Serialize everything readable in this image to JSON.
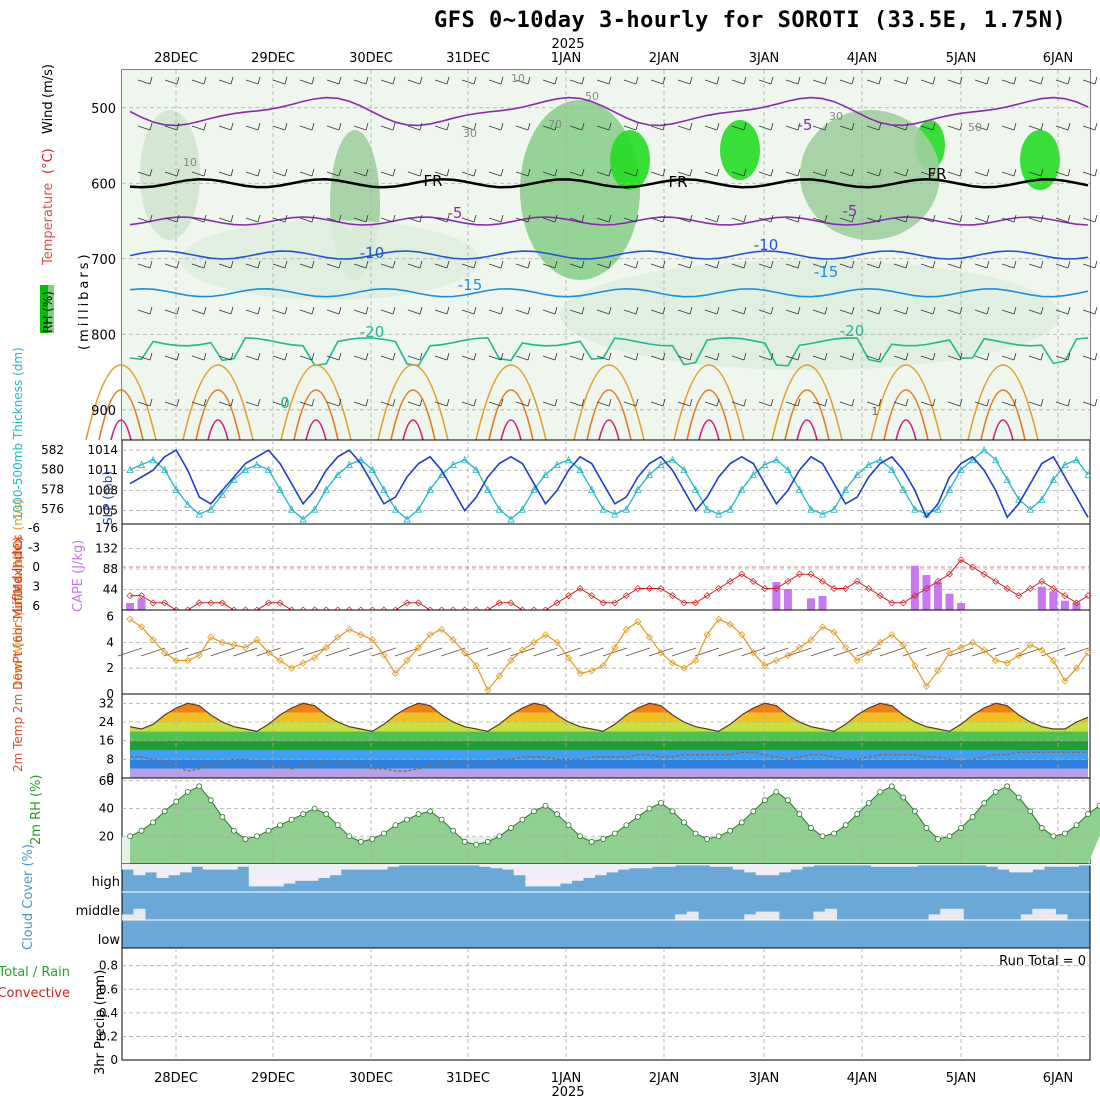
{
  "title": "GFS 0~10day 3-hourly for SOROTI (33.5E, 1.75N)",
  "colors": {
    "slp": "#1f3fcc",
    "thickness": "#20b8c8",
    "lifted_index": "#d02020",
    "cape": "#c878f0",
    "wind_speed": "#e09a20",
    "rh_fill": "#5cb85c",
    "cloud": "#6aa8d8",
    "temp_fill_top": "#c84000",
    "dewpoint": "#8a6a50"
  },
  "chart_data": [
    {
      "type": "heatmap",
      "id": "upper-air",
      "ylabel_parts": [
        "Temperature",
        "(°C)",
        "Wind",
        "(m/s)"
      ],
      "rh_label": "RH (%)",
      "pressure_label": "(millibars)",
      "y_ticks": [
        500,
        600,
        700,
        800,
        900
      ],
      "ylim": [
        940,
        450
      ],
      "x_dates_top": [
        "28DEC",
        "29DEC",
        "30DEC",
        "31DEC",
        "1JAN",
        "2JAN",
        "3JAN",
        "4JAN",
        "5JAN",
        "6JAN"
      ],
      "year_label": "2025",
      "contour_labels": [
        "-5",
        "-5",
        "-5",
        "-10",
        "-10",
        "-15",
        "-15",
        "-20",
        "-20",
        "FR",
        "FR",
        "FR",
        "10",
        "10",
        "30",
        "30",
        "50",
        "50",
        "70",
        "0",
        "1"
      ],
      "freezing_level_mb": 600
    },
    {
      "type": "line",
      "id": "slp-thickness",
      "ylabel_left": "1000-500mb Thickness (dm)",
      "ylabel_right": "SLP (mb)",
      "thickness_ticks": [
        576,
        578,
        580,
        582
      ],
      "slp_ticks": [
        1005,
        1008,
        1011,
        1014
      ],
      "slp": [
        1009,
        1010,
        1011,
        1013,
        1014,
        1011,
        1007,
        1006,
        1008,
        1010,
        1012,
        1013,
        1014,
        1012,
        1009,
        1006,
        1008,
        1011,
        1013,
        1014,
        1012,
        1009,
        1006,
        1007,
        1010,
        1012,
        1013,
        1011,
        1008,
        1005,
        1007,
        1010,
        1012,
        1013,
        1012,
        1009,
        1006,
        1008,
        1011,
        1013,
        1012,
        1009,
        1006,
        1007,
        1010,
        1012,
        1013,
        1011,
        1008,
        1005,
        1007,
        1010,
        1012,
        1013,
        1012,
        1009,
        1006,
        1008,
        1011,
        1013,
        1012,
        1009,
        1006,
        1007,
        1010,
        1012,
        1013,
        1011,
        1008,
        1004,
        1006,
        1010,
        1012,
        1013,
        1011,
        1008,
        1004,
        1006,
        1009,
        1012,
        1013,
        1010,
        1007,
        1004
      ],
      "thickness": [
        580,
        580.5,
        581,
        580,
        578,
        576.5,
        575.5,
        576,
        577.5,
        579,
        580,
        580.5,
        580,
        578,
        576,
        575,
        576,
        578,
        579.5,
        580.5,
        581,
        580,
        578,
        576,
        575,
        576,
        578,
        579.5,
        580.5,
        581,
        580,
        578,
        576,
        575,
        576,
        578,
        579.5,
        580.5,
        581,
        580,
        578,
        576,
        575.5,
        576,
        578,
        579.5,
        580.5,
        581,
        580,
        578,
        576,
        575.5,
        576,
        578,
        579.5,
        580.5,
        581,
        580,
        578,
        576,
        575.5,
        576,
        578,
        579.5,
        580.5,
        581,
        580,
        578,
        576,
        575.5,
        576,
        578,
        580,
        581,
        582,
        581,
        579,
        577,
        576,
        577,
        579,
        580.5,
        581,
        579.5
      ]
    },
    {
      "type": "bar",
      "id": "cape-li",
      "ylabel_left": "Lifted Index",
      "ylabel_right": "CAPE (J/kg)",
      "li_ticks": [
        "-6",
        "-3",
        "0",
        "3",
        "6"
      ],
      "cape_ticks": [
        44,
        88,
        132,
        176
      ],
      "cape": [
        15,
        25,
        0,
        0,
        0,
        0,
        0,
        0,
        0,
        0,
        0,
        0,
        0,
        0,
        0,
        0,
        0,
        0,
        0,
        0,
        0,
        0,
        0,
        0,
        0,
        0,
        0,
        0,
        0,
        0,
        0,
        0,
        0,
        0,
        0,
        0,
        0,
        0,
        0,
        0,
        0,
        0,
        0,
        0,
        0,
        0,
        0,
        0,
        0,
        0,
        0,
        0,
        0,
        0,
        0,
        0,
        60,
        45,
        0,
        25,
        30,
        0,
        0,
        0,
        0,
        0,
        0,
        0,
        95,
        75,
        60,
        35,
        15,
        0,
        0,
        0,
        0,
        0,
        0,
        50,
        40,
        20,
        15,
        0
      ],
      "lifted_index": [
        4,
        4,
        5,
        5,
        6,
        6,
        5,
        5,
        5,
        6,
        6,
        6,
        5,
        5,
        6,
        6,
        6,
        6,
        6,
        6,
        6,
        6,
        6,
        6,
        5,
        5,
        6,
        6,
        6,
        6,
        6,
        6,
        5,
        5,
        6,
        6,
        6,
        5,
        4,
        3,
        4,
        5,
        5,
        4,
        3,
        3,
        3,
        4,
        5,
        5,
        4,
        3,
        2,
        1,
        2,
        3,
        3,
        2,
        1,
        1,
        2,
        3,
        3,
        2,
        3,
        4,
        5,
        5,
        4,
        3,
        2,
        1,
        -1,
        0,
        1,
        2,
        3,
        4,
        3,
        2,
        3,
        4,
        5,
        4
      ]
    },
    {
      "type": "line",
      "id": "wind-10m",
      "ylabel": "10m Wind Speed & Barbs (m/s)",
      "y_ticks": [
        0,
        2,
        4,
        6
      ],
      "ylim": [
        0,
        6
      ],
      "values": [
        5.8,
        5.2,
        4.2,
        3.2,
        2.6,
        2.6,
        3.0,
        4.4,
        4.0,
        3.8,
        3.6,
        4.2,
        3.2,
        2.6,
        2.0,
        2.4,
        2.8,
        3.6,
        4.4,
        5.0,
        4.6,
        4.2,
        3.0,
        1.6,
        2.6,
        3.6,
        4.6,
        5.0,
        4.2,
        3.2,
        2.2,
        0.3,
        1.4,
        2.6,
        3.4,
        4.0,
        4.6,
        4.0,
        2.8,
        1.6,
        1.8,
        2.2,
        3.6,
        5.0,
        5.6,
        4.4,
        3.2,
        2.4,
        2.0,
        2.6,
        4.6,
        5.8,
        5.4,
        4.6,
        3.2,
        2.2,
        2.6,
        3.0,
        3.6,
        4.2,
        5.2,
        4.8,
        3.6,
        2.6,
        3.2,
        4.0,
        4.6,
        3.8,
        2.2,
        0.6,
        1.8,
        3.2,
        3.6,
        4.0,
        3.4,
        2.6,
        2.4,
        3.0,
        3.8,
        3.4,
        2.6,
        1.0,
        2.0,
        3.2
      ]
    },
    {
      "type": "area",
      "id": "temp-2m",
      "ylabel": "2m Temp 2m DewPt (6hr Min/Max) (°C)",
      "y_ticks": [
        0,
        8,
        16,
        24,
        32
      ],
      "ylim": [
        0,
        36
      ],
      "temperature": [
        22,
        21,
        23,
        27,
        30,
        32,
        31,
        27,
        24,
        22,
        21,
        20,
        23,
        27,
        30,
        32,
        31,
        27,
        24,
        22,
        21,
        20,
        23,
        27,
        30,
        32,
        31,
        27,
        24,
        22,
        21,
        20,
        23,
        27,
        30,
        32,
        31,
        27,
        24,
        22,
        21,
        20,
        23,
        27,
        30,
        32,
        31,
        27,
        24,
        22,
        21,
        20,
        23,
        27,
        30,
        32,
        31,
        27,
        24,
        22,
        21,
        20,
        23,
        27,
        30,
        32,
        31,
        27,
        24,
        22,
        21,
        20,
        23,
        27,
        30,
        32,
        31,
        27,
        24,
        22,
        21,
        21,
        24,
        26
      ],
      "dewpoint": [
        9,
        9,
        8,
        7,
        5,
        3,
        4,
        6,
        7,
        8,
        8,
        7,
        6,
        5,
        4,
        5,
        6,
        7,
        7,
        6,
        5,
        4,
        4,
        3,
        3,
        4,
        5,
        6,
        7,
        7,
        7,
        7,
        8,
        8,
        9,
        9,
        9,
        8,
        8,
        8,
        9,
        9,
        9,
        9,
        10,
        10,
        9,
        9,
        10,
        10,
        10,
        10,
        10,
        11,
        11,
        10,
        9,
        8,
        9,
        10,
        10,
        9,
        8,
        8,
        9,
        10,
        10,
        10,
        10,
        9,
        9,
        8,
        7,
        8,
        9,
        10,
        10,
        11,
        11,
        11,
        11,
        11,
        11,
        11
      ]
    },
    {
      "type": "area",
      "id": "rh-2m",
      "ylabel": "2m RH (%)",
      "y_ticks": [
        20,
        40,
        60
      ],
      "ylim": [
        0,
        62
      ],
      "values": [
        20,
        24,
        30,
        38,
        45,
        52,
        56,
        46,
        34,
        24,
        18,
        20,
        24,
        28,
        32,
        36,
        40,
        36,
        28,
        20,
        16,
        18,
        22,
        28,
        32,
        36,
        38,
        32,
        24,
        16,
        14,
        16,
        20,
        26,
        32,
        38,
        42,
        36,
        28,
        20,
        16,
        18,
        22,
        28,
        34,
        40,
        44,
        38,
        30,
        22,
        18,
        20,
        24,
        30,
        38,
        46,
        52,
        46,
        36,
        26,
        20,
        22,
        28,
        36,
        44,
        52,
        56,
        48,
        38,
        26,
        18,
        20,
        26,
        34,
        44,
        52,
        56,
        48,
        38,
        26,
        20,
        22,
        28,
        36,
        42,
        40
      ]
    },
    {
      "type": "bar",
      "id": "cloud-cover",
      "ylabel": "Cloud Cover (%)",
      "levels": [
        "high",
        "middle",
        "low"
      ],
      "high": [
        80,
        60,
        70,
        50,
        60,
        70,
        90,
        80,
        80,
        80,
        90,
        20,
        20,
        20,
        30,
        40,
        40,
        50,
        60,
        80,
        80,
        80,
        80,
        90,
        95,
        95,
        95,
        95,
        95,
        95,
        95,
        90,
        85,
        80,
        60,
        20,
        20,
        20,
        30,
        40,
        50,
        60,
        70,
        80,
        85,
        85,
        90,
        90,
        95,
        95,
        95,
        90,
        90,
        80,
        70,
        60,
        60,
        70,
        80,
        90,
        95,
        95,
        95,
        95,
        95,
        90,
        90,
        90,
        90,
        95,
        95,
        95,
        95,
        95,
        95,
        90,
        80,
        70,
        70,
        80,
        90,
        90,
        90,
        95
      ],
      "middle": [
        20,
        40,
        0,
        0,
        0,
        0,
        0,
        0,
        0,
        0,
        0,
        0,
        0,
        0,
        0,
        0,
        0,
        0,
        0,
        0,
        0,
        0,
        0,
        0,
        0,
        0,
        0,
        0,
        0,
        0,
        0,
        0,
        0,
        0,
        0,
        0,
        0,
        0,
        0,
        0,
        0,
        0,
        0,
        0,
        0,
        0,
        0,
        0,
        20,
        30,
        0,
        0,
        0,
        0,
        20,
        30,
        30,
        0,
        0,
        0,
        30,
        40,
        0,
        0,
        0,
        0,
        0,
        0,
        0,
        0,
        20,
        40,
        40,
        0,
        0,
        0,
        0,
        0,
        20,
        40,
        40,
        20,
        0,
        0
      ]
    },
    {
      "type": "bar",
      "id": "precip-3hr",
      "ylabel_parts": [
        "3hr Precip (mm)",
        "Total / Rain",
        "Convective"
      ],
      "y_ticks": [
        "0",
        "0.2",
        "0.4",
        "0.6",
        "0.8"
      ],
      "ylim": [
        0,
        0.95
      ],
      "run_total": "Run Total = 0",
      "x_dates_bottom": [
        "28DEC",
        "29DEC",
        "30DEC",
        "31DEC",
        "1JAN",
        "2JAN",
        "3JAN",
        "4JAN",
        "5JAN",
        "6JAN"
      ],
      "year_label": "2025"
    }
  ]
}
